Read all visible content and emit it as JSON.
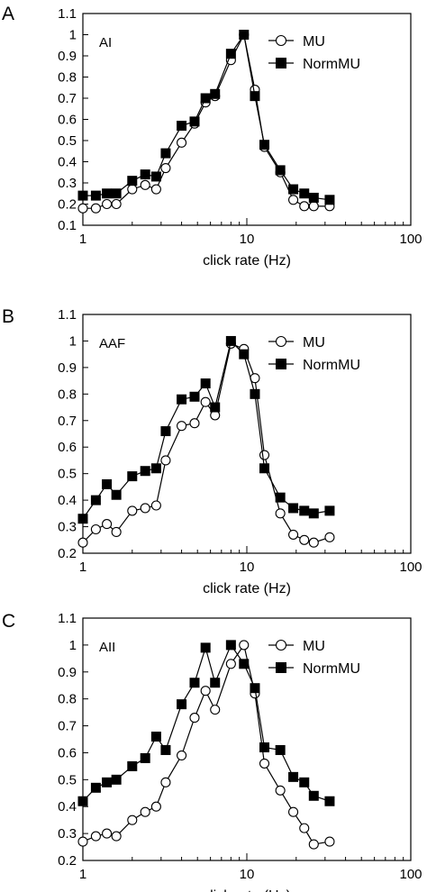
{
  "chart_data": [
    {
      "type": "line",
      "panel": "A",
      "area_label": "AI",
      "xlabel": "click rate (Hz)",
      "ylabel": "",
      "xscale": "log",
      "xlim": [
        1,
        100
      ],
      "ylim": [
        0.1,
        1.1
      ],
      "xticks": [
        "1",
        "10",
        "100"
      ],
      "yticks": [
        "0.1",
        "0.2",
        "0.3",
        "0.4",
        "0.5",
        "0.6",
        "0.7",
        "0.8",
        "0.9",
        "1",
        "1.1"
      ],
      "grid": false,
      "legend_position": "top-right",
      "x": [
        1,
        1.2,
        1.4,
        1.6,
        2,
        2.4,
        2.8,
        3.2,
        4,
        4.8,
        5.6,
        6.4,
        8,
        9.6,
        11.2,
        12.8,
        16,
        19.2,
        22.4,
        25.6,
        32
      ],
      "series": [
        {
          "name": "MU",
          "marker": "open-circle",
          "values": [
            0.18,
            0.18,
            0.2,
            0.2,
            0.27,
            0.29,
            0.27,
            0.37,
            0.49,
            0.58,
            0.68,
            0.71,
            0.88,
            1.0,
            0.74,
            0.47,
            0.35,
            0.22,
            0.19,
            0.19,
            0.19
          ]
        },
        {
          "name": "NormMU",
          "marker": "filled-square",
          "values": [
            0.24,
            0.24,
            0.25,
            0.25,
            0.31,
            0.34,
            0.33,
            0.44,
            0.57,
            0.59,
            0.7,
            0.72,
            0.91,
            1.0,
            0.71,
            0.48,
            0.36,
            0.27,
            0.25,
            0.23,
            0.22
          ]
        }
      ]
    },
    {
      "type": "line",
      "panel": "B",
      "area_label": "AAF",
      "xlabel": "click rate (Hz)",
      "ylabel": "",
      "xscale": "log",
      "xlim": [
        1,
        100
      ],
      "ylim": [
        0.2,
        1.1
      ],
      "xticks": [
        "1",
        "10",
        "100"
      ],
      "yticks": [
        "0.2",
        "0.3",
        "0.4",
        "0.5",
        "0.6",
        "0.7",
        "0.8",
        "0.9",
        "1",
        "1.1"
      ],
      "grid": false,
      "legend_position": "top-right",
      "x": [
        1,
        1.2,
        1.4,
        1.6,
        2,
        2.4,
        2.8,
        3.2,
        4,
        4.8,
        5.6,
        6.4,
        8,
        9.6,
        11.2,
        12.8,
        16,
        19.2,
        22.4,
        25.6,
        32
      ],
      "series": [
        {
          "name": "MU",
          "marker": "open-circle",
          "values": [
            0.24,
            0.29,
            0.31,
            0.28,
            0.36,
            0.37,
            0.38,
            0.55,
            0.68,
            0.69,
            0.77,
            0.72,
            0.99,
            0.97,
            0.86,
            0.57,
            0.35,
            0.27,
            0.25,
            0.24,
            0.26
          ]
        },
        {
          "name": "NormMU",
          "marker": "filled-square",
          "values": [
            0.33,
            0.4,
            0.46,
            0.42,
            0.49,
            0.51,
            0.52,
            0.66,
            0.78,
            0.79,
            0.84,
            0.75,
            1.0,
            0.95,
            0.8,
            0.52,
            0.41,
            0.37,
            0.36,
            0.35,
            0.36
          ]
        }
      ]
    },
    {
      "type": "line",
      "panel": "C",
      "area_label": "AII",
      "xlabel": "click rate (Hz)",
      "ylabel": "",
      "xscale": "log",
      "xlim": [
        1,
        100
      ],
      "ylim": [
        0.2,
        1.1
      ],
      "xticks": [
        "1",
        "10",
        "100"
      ],
      "yticks": [
        "0.2",
        "0.3",
        "0.4",
        "0.5",
        "0.6",
        "0.7",
        "0.8",
        "0.9",
        "1",
        "1.1"
      ],
      "grid": false,
      "legend_position": "top-right",
      "x": [
        1,
        1.2,
        1.4,
        1.6,
        2,
        2.4,
        2.8,
        3.2,
        4,
        4.8,
        5.6,
        6.4,
        8,
        9.6,
        11.2,
        12.8,
        16,
        19.2,
        22.4,
        25.6,
        32
      ],
      "series": [
        {
          "name": "MU",
          "marker": "open-circle",
          "values": [
            0.27,
            0.29,
            0.3,
            0.29,
            0.35,
            0.38,
            0.4,
            0.49,
            0.59,
            0.73,
            0.83,
            0.76,
            0.93,
            1.0,
            0.82,
            0.56,
            0.46,
            0.38,
            0.32,
            0.26,
            0.27
          ]
        },
        {
          "name": "NormMU",
          "marker": "filled-square",
          "values": [
            0.42,
            0.47,
            0.49,
            0.5,
            0.55,
            0.58,
            0.66,
            0.61,
            0.78,
            0.86,
            0.99,
            0.86,
            1.0,
            0.93,
            0.84,
            0.62,
            0.61,
            0.51,
            0.49,
            0.44,
            0.42
          ]
        }
      ]
    }
  ],
  "colors": {
    "line": "#000000",
    "background": "#ffffff",
    "open_marker_fill": "#ffffff",
    "filled_marker_fill": "#000000"
  }
}
